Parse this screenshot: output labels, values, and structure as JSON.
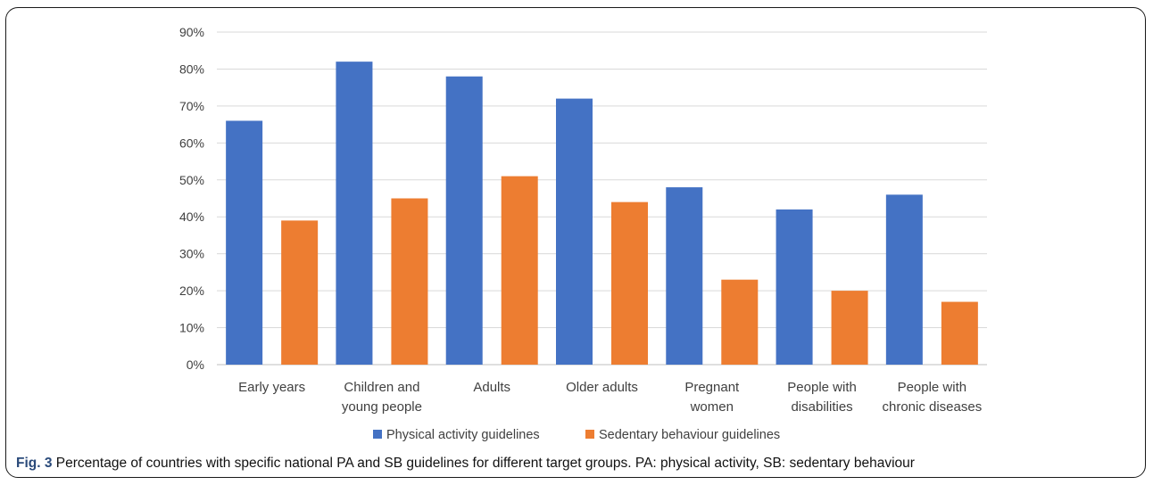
{
  "caption": {
    "label": "Fig. 3",
    "text": "Percentage of countries with specific national PA and SB guidelines for different target groups. PA: physical activity, SB: sedentary behaviour"
  },
  "chart_data": {
    "type": "bar",
    "title": "",
    "xlabel": "",
    "ylabel": "",
    "categories": [
      [
        "Early years"
      ],
      [
        "Children and",
        "young people"
      ],
      [
        "Adults"
      ],
      [
        "Older adults"
      ],
      [
        "Pregnant",
        "women"
      ],
      [
        "People with",
        "disabilities"
      ],
      [
        "People with",
        "chronic diseases"
      ]
    ],
    "series": [
      {
        "name": "Physical activity guidelines",
        "color": "#4472C4",
        "values": [
          66,
          82,
          78,
          72,
          48,
          42,
          46
        ]
      },
      {
        "name": "Sedentary behaviour guidelines",
        "color": "#ED7D31",
        "values": [
          39,
          45,
          51,
          44,
          23,
          20,
          17
        ]
      }
    ],
    "ylim": [
      0,
      90
    ],
    "yticks": [
      0,
      10,
      20,
      30,
      40,
      50,
      60,
      70,
      80,
      90
    ],
    "ytick_format": "%",
    "grid": true,
    "legend_position": "bottom-center"
  }
}
